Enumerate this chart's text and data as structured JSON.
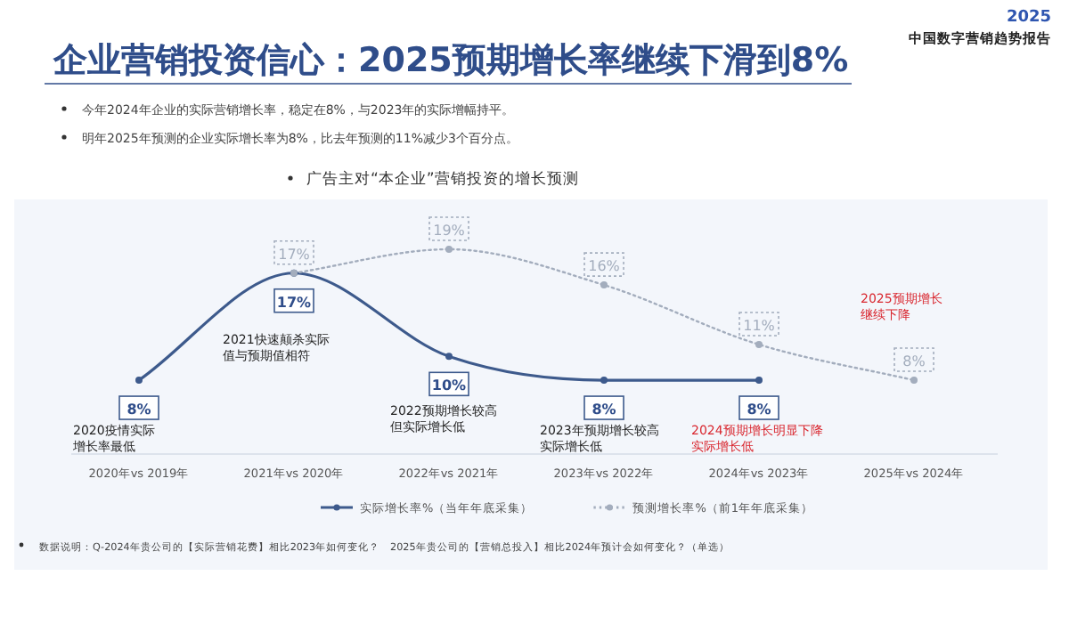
{
  "chart_data": {
    "type": "line",
    "title": "企业营销投资信心：2025预期增长率继续下滑到8%",
    "subtitle": "广告主对“本企业”营销投资的增长预测",
    "categories": [
      "2020年vs 2019年",
      "2021年vs 2020年",
      "2022年vs 2021年",
      "2023年vs 2022年",
      "2024年vs 2023年",
      "2025年vs 2024年"
    ],
    "series": [
      {
        "name": "实际增长率%（当年年底采集）",
        "color": "#3d5a8c",
        "values": [
          8,
          17,
          10,
          8,
          8,
          null
        ],
        "value_labels": [
          "8%",
          "17%",
          "10%",
          "8%",
          "8%",
          null
        ],
        "line_style": "solid"
      },
      {
        "name": "预测增长率%（前1年年底采集）",
        "color": "#a3adbd",
        "values": [
          null,
          17,
          19,
          16,
          11,
          8
        ],
        "value_labels": [
          null,
          "17%",
          "19%",
          "16%",
          "11%",
          "8%"
        ],
        "line_style": "dotted"
      }
    ],
    "marker": "circle",
    "legend": "bottom",
    "annotations": [
      "2025 中国数字营销趋势报告",
      "今年2024年企业的实际营销增长率，稳定在8%，与2023年的实际增幅持平。",
      "明年2025年预测的企业实际增长率为8%，比去年预测的11%减少3个百分点。",
      "2020疫情实际增长率最低",
      "2021快速颠杀实际值与预期值相符",
      "2022预期增长较高但实际增长低",
      "2023年预期增长较高实际增长低",
      "2024预期增长明显下降实际增长低",
      "2025预期增长继续下降",
      "数据说明：Q-2024年贵公司的【实际营销花费】相比2023年如何变化？　2025年贵公司的【营销总投入】相比2024年预计会如何变化？（单选）"
    ]
  }
}
